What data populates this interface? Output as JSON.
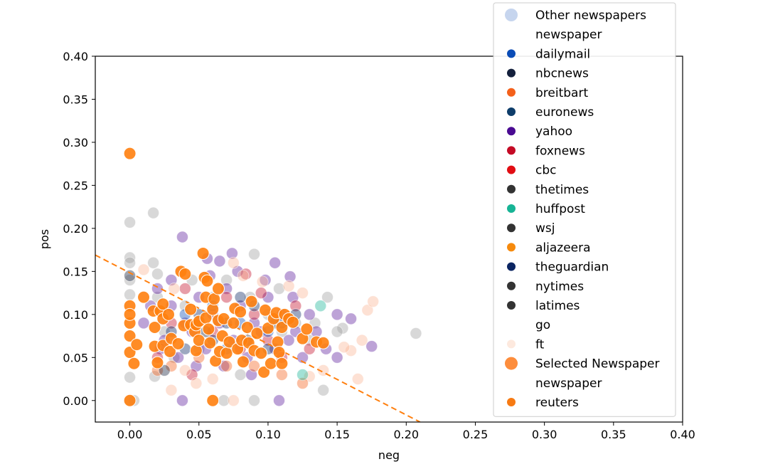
{
  "chart_data": {
    "type": "scatter",
    "xlabel": "neg",
    "ylabel": "pos",
    "xlim": [
      -0.025,
      0.4
    ],
    "ylim": [
      -0.025,
      0.4
    ],
    "x_ticks": [
      "0.00",
      "0.05",
      "0.10",
      "0.15",
      "0.20",
      "0.25",
      "0.30",
      "0.35",
      "0.40"
    ],
    "y_ticks": [
      "0.00",
      "0.05",
      "0.10",
      "0.15",
      "0.20",
      "0.25",
      "0.30",
      "0.35",
      "0.40"
    ],
    "legend_placement": "top-right, outside plot",
    "legend": [
      {
        "label": "Other newspapers",
        "color": "#c6d5ee",
        "kind": "section"
      },
      {
        "label": "newspaper",
        "color": null,
        "kind": "header"
      },
      {
        "label": "dailymail",
        "color": "#0b4cb6"
      },
      {
        "label": "nbcnews",
        "color": "#14203c"
      },
      {
        "label": "breitbart",
        "color": "#f4601a"
      },
      {
        "label": "euronews",
        "color": "#0e3d6a"
      },
      {
        "label": "yahoo",
        "color": "#4a0a92"
      },
      {
        "label": "foxnews",
        "color": "#c40a25"
      },
      {
        "label": "cbc",
        "color": "#e10d13"
      },
      {
        "label": "thetimes",
        "color": "#333333"
      },
      {
        "label": "huffpost",
        "color": "#17b495"
      },
      {
        "label": "wsj",
        "color": "#333333"
      },
      {
        "label": "aljazeera",
        "color": "#f68a0d"
      },
      {
        "label": "theguardian",
        "color": "#0b2562"
      },
      {
        "label": "nytimes",
        "color": "#333333"
      },
      {
        "label": "latimes",
        "color": "#333333"
      },
      {
        "label": "go",
        "color": null
      },
      {
        "label": "ft",
        "color": "#fde9de"
      },
      {
        "label": "Selected Newspaper",
        "color": "#fd8d3c",
        "kind": "section"
      },
      {
        "label": "newspaper",
        "color": null,
        "kind": "header"
      },
      {
        "label": "reuters",
        "color": "#f77a12"
      }
    ],
    "trend_line": {
      "color": "#ff7f0e",
      "style": "dashed",
      "points": [
        [
          -0.025,
          0.169
        ],
        [
          0.21,
          -0.025
        ]
      ]
    },
    "selected_series": {
      "name": "reuters",
      "color": "#ff7f0e",
      "points": [
        [
          0.0,
          0.287
        ],
        [
          0.0,
          0.11
        ],
        [
          0.0,
          0.09
        ],
        [
          0.0,
          0.075
        ],
        [
          0.0,
          0.056
        ],
        [
          0.0,
          0.0
        ],
        [
          0.005,
          0.065
        ],
        [
          0.01,
          0.12
        ],
        [
          0.017,
          0.104
        ],
        [
          0.018,
          0.063
        ],
        [
          0.018,
          0.085
        ],
        [
          0.02,
          0.044
        ],
        [
          0.022,
          0.104
        ],
        [
          0.024,
          0.095
        ],
        [
          0.024,
          0.112
        ],
        [
          0.024,
          0.064
        ],
        [
          0.028,
          0.1
        ],
        [
          0.029,
          0.057
        ],
        [
          0.03,
          0.072
        ],
        [
          0.035,
          0.066
        ],
        [
          0.037,
          0.15
        ],
        [
          0.039,
          0.087
        ],
        [
          0.04,
          0.147
        ],
        [
          0.044,
          0.088
        ],
        [
          0.044,
          0.106
        ],
        [
          0.047,
          0.08
        ],
        [
          0.048,
          0.088
        ],
        [
          0.048,
          0.058
        ],
        [
          0.05,
          0.07
        ],
        [
          0.05,
          0.092
        ],
        [
          0.053,
          0.171
        ],
        [
          0.054,
          0.143
        ],
        [
          0.055,
          0.12
        ],
        [
          0.055,
          0.096
        ],
        [
          0.056,
          0.139
        ],
        [
          0.057,
          0.083
        ],
        [
          0.058,
          0.067
        ],
        [
          0.06,
          0.106
        ],
        [
          0.06,
          0.0
        ],
        [
          0.061,
          0.118
        ],
        [
          0.062,
          0.046
        ],
        [
          0.064,
          0.13
        ],
        [
          0.064,
          0.093
        ],
        [
          0.065,
          0.057
        ],
        [
          0.067,
          0.075
        ],
        [
          0.068,
          0.095
        ],
        [
          0.07,
          0.055
        ],
        [
          0.072,
          0.068
        ],
        [
          0.075,
          0.09
        ],
        [
          0.076,
          0.107
        ],
        [
          0.078,
          0.06
        ],
        [
          0.08,
          0.103
        ],
        [
          0.081,
          0.07
        ],
        [
          0.082,
          0.045
        ],
        [
          0.085,
          0.085
        ],
        [
          0.086,
          0.067
        ],
        [
          0.088,
          0.115
        ],
        [
          0.09,
          0.058
        ],
        [
          0.092,
          0.078
        ],
        [
          0.095,
          0.055
        ],
        [
          0.097,
          0.033
        ],
        [
          0.098,
          0.105
        ],
        [
          0.1,
          0.084
        ],
        [
          0.102,
          0.043
        ],
        [
          0.104,
          0.095
        ],
        [
          0.106,
          0.102
        ],
        [
          0.107,
          0.068
        ],
        [
          0.108,
          0.056
        ],
        [
          0.11,
          0.085
        ],
        [
          0.11,
          0.043
        ],
        [
          0.112,
          0.1
        ],
        [
          0.115,
          0.095
        ],
        [
          0.118,
          0.091
        ],
        [
          0.125,
          0.072
        ],
        [
          0.128,
          0.083
        ],
        [
          0.135,
          0.068
        ],
        [
          0.14,
          0.067
        ],
        [
          0.003,
          0.043
        ],
        [
          0.0,
          0.1
        ]
      ]
    },
    "background_series": [
      {
        "name": "Other newspapers",
        "color": "#9e9e9e",
        "points": [
          [
            0.0,
            0.207
          ],
          [
            0.017,
            0.218
          ],
          [
            0.0,
            0.166
          ],
          [
            0.0,
            0.16
          ],
          [
            0.0,
            0.14
          ],
          [
            0.0,
            0.123
          ],
          [
            0.0,
            0.027
          ],
          [
            0.003,
            0.0
          ],
          [
            0.0,
            0.0
          ],
          [
            0.02,
            0.147
          ],
          [
            0.017,
            0.16
          ],
          [
            0.09,
            0.17
          ],
          [
            0.143,
            0.12
          ],
          [
            0.154,
            0.084
          ],
          [
            0.14,
            0.012
          ],
          [
            0.207,
            0.078
          ],
          [
            0.09,
            0.0
          ],
          [
            0.068,
            0.0
          ],
          [
            0.032,
            0.05
          ],
          [
            0.06,
            0.12
          ],
          [
            0.1,
            0.1
          ],
          [
            0.12,
            0.09
          ],
          [
            0.13,
            0.07
          ],
          [
            0.02,
            0.12
          ],
          [
            0.04,
            0.11
          ],
          [
            0.07,
            0.14
          ],
          [
            0.11,
            0.08
          ],
          [
            0.05,
            0.06
          ],
          [
            0.08,
            0.03
          ],
          [
            0.018,
            0.028
          ],
          [
            0.134,
            0.09
          ],
          [
            0.15,
            0.08
          ],
          [
            0.108,
            0.13
          ],
          [
            0.087,
            0.12
          ],
          [
            0.045,
            0.14
          ],
          [
            0.025,
            0.08
          ]
        ]
      },
      {
        "name": "yahoo",
        "color": "#5b1a9c",
        "points": [
          [
            0.038,
            0.19
          ],
          [
            0.056,
            0.165
          ],
          [
            0.074,
            0.171
          ],
          [
            0.105,
            0.16
          ],
          [
            0.116,
            0.144
          ],
          [
            0.065,
            0.162
          ],
          [
            0.15,
            0.1
          ],
          [
            0.16,
            0.095
          ],
          [
            0.175,
            0.063
          ],
          [
            0.15,
            0.05
          ],
          [
            0.108,
            0.0
          ],
          [
            0.038,
            0.0
          ],
          [
            0.02,
            0.13
          ],
          [
            0.03,
            0.11
          ],
          [
            0.04,
            0.09
          ],
          [
            0.05,
            0.12
          ],
          [
            0.06,
            0.1
          ],
          [
            0.07,
            0.13
          ],
          [
            0.08,
            0.11
          ],
          [
            0.09,
            0.09
          ],
          [
            0.1,
            0.12
          ],
          [
            0.11,
            0.1
          ],
          [
            0.12,
            0.08
          ],
          [
            0.13,
            0.1
          ],
          [
            0.025,
            0.07
          ],
          [
            0.035,
            0.05
          ],
          [
            0.045,
            0.08
          ],
          [
            0.055,
            0.06
          ],
          [
            0.065,
            0.09
          ],
          [
            0.075,
            0.07
          ],
          [
            0.085,
            0.05
          ],
          [
            0.095,
            0.08
          ],
          [
            0.105,
            0.06
          ],
          [
            0.115,
            0.07
          ],
          [
            0.125,
            0.05
          ],
          [
            0.135,
            0.08
          ],
          [
            0.01,
            0.09
          ],
          [
            0.015,
            0.11
          ],
          [
            0.022,
            0.06
          ],
          [
            0.048,
            0.04
          ],
          [
            0.068,
            0.04
          ],
          [
            0.088,
            0.03
          ],
          [
            0.078,
            0.15
          ],
          [
            0.098,
            0.14
          ],
          [
            0.058,
            0.145
          ],
          [
            0.118,
            0.12
          ],
          [
            0.142,
            0.06
          ],
          [
            0.03,
            0.14
          ]
        ]
      },
      {
        "name": "foxnews",
        "color": "#c40a25",
        "points": [
          [
            0.084,
            0.147
          ],
          [
            0.07,
            0.12
          ],
          [
            0.09,
            0.1
          ],
          [
            0.045,
            0.03
          ],
          [
            0.1,
            0.07
          ],
          [
            0.12,
            0.11
          ],
          [
            0.03,
            0.09
          ],
          [
            0.06,
            0.08
          ],
          [
            0.08,
            0.06
          ],
          [
            0.11,
            0.05
          ],
          [
            0.02,
            0.05
          ],
          [
            0.04,
            0.13
          ],
          [
            0.13,
            0.06
          ],
          [
            0.095,
            0.125
          ]
        ]
      },
      {
        "name": "theguardian",
        "color": "#0b2562",
        "points": [
          [
            0.05,
            0.1
          ],
          [
            0.07,
            0.09
          ],
          [
            0.09,
            0.11
          ],
          [
            0.03,
            0.08
          ],
          [
            0.11,
            0.09
          ],
          [
            0.06,
            0.07
          ],
          [
            0.08,
            0.12
          ],
          [
            0.1,
            0.06
          ],
          [
            0.04,
            0.06
          ],
          [
            0.12,
            0.1
          ]
        ]
      },
      {
        "name": "ft",
        "color": "#fbb494",
        "points": [
          [
            0.032,
            0.13
          ],
          [
            0.115,
            0.133
          ],
          [
            0.125,
            0.125
          ],
          [
            0.168,
            0.07
          ],
          [
            0.165,
            0.025
          ],
          [
            0.172,
            0.105
          ],
          [
            0.176,
            0.115
          ],
          [
            0.16,
            0.058
          ],
          [
            0.155,
            0.062
          ],
          [
            0.03,
            0.012
          ],
          [
            0.075,
            0.0
          ],
          [
            0.01,
            0.152
          ],
          [
            0.04,
            0.035
          ],
          [
            0.06,
            0.025
          ],
          [
            0.13,
            0.028
          ],
          [
            0.14,
            0.035
          ],
          [
            0.075,
            0.16
          ],
          [
            0.082,
            0.145
          ],
          [
            0.048,
            0.02
          ],
          [
            0.096,
            0.138
          ]
        ]
      },
      {
        "name": "breitbart",
        "color": "#f4601a",
        "points": [
          [
            0.03,
            0.04
          ],
          [
            0.05,
            0.05
          ],
          [
            0.07,
            0.04
          ],
          [
            0.09,
            0.04
          ],
          [
            0.11,
            0.03
          ],
          [
            0.125,
            0.02
          ],
          [
            0.02,
            0.035
          ]
        ]
      },
      {
        "name": "huffpost",
        "color": "#17b495",
        "points": [
          [
            0.125,
            0.03
          ],
          [
            0.138,
            0.11
          ]
        ]
      },
      {
        "name": "dailymail",
        "color": "#0b4cb6",
        "points": [
          [
            0.06,
            0.11
          ],
          [
            0.08,
            0.09
          ],
          [
            0.1,
            0.08
          ],
          [
            0.04,
            0.1
          ],
          [
            0.07,
            0.06
          ]
        ]
      },
      {
        "name": "nbcnews",
        "color": "#14203c",
        "points": [
          [
            0.0,
            0.145
          ],
          [
            0.025,
            0.035
          ],
          [
            0.055,
            0.08
          ],
          [
            0.085,
            0.07
          ],
          [
            0.105,
            0.09
          ]
        ]
      }
    ]
  }
}
